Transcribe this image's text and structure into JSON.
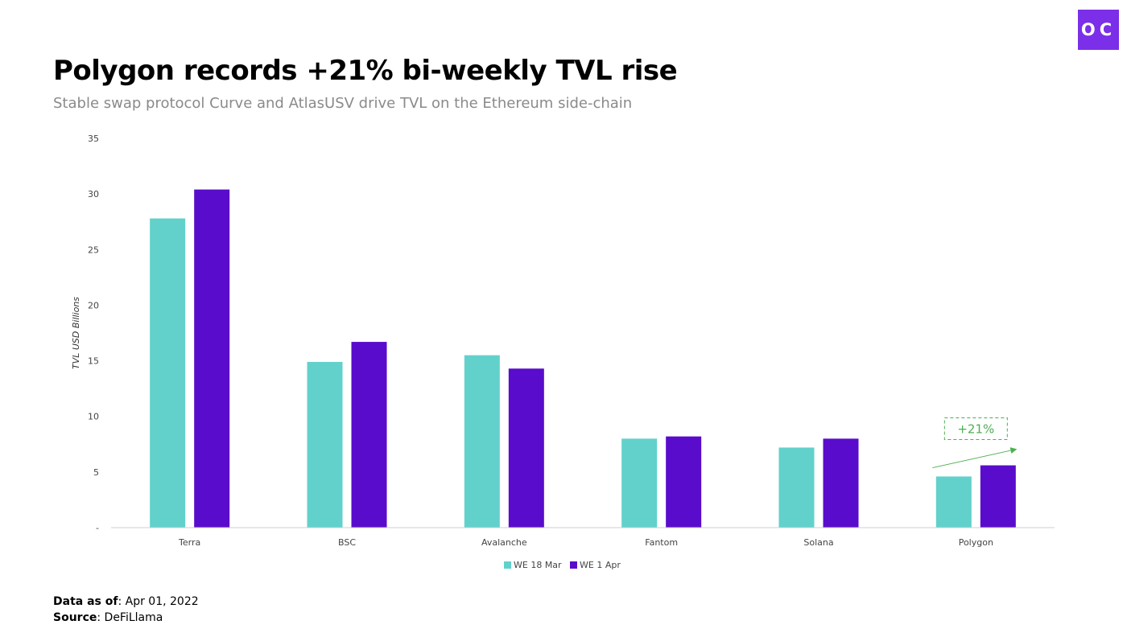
{
  "logo": {
    "text": "OC"
  },
  "header": {
    "title": "Polygon records +21% bi-weekly TVL rise",
    "subtitle": "Stable swap protocol Curve and AtlasUSV drive TVL on the Ethereum side-chain"
  },
  "colors": {
    "series1": "#62d1cb",
    "series2": "#5a0ccc",
    "annotation": "#4caf50",
    "brand": "#7b2fe8"
  },
  "chart_data": {
    "type": "bar",
    "title": "Polygon records +21% bi-weekly TVL rise",
    "xlabel": "",
    "ylabel": "TVL USD Billions",
    "ylim": [
      0,
      35
    ],
    "yticks": [
      {
        "value": 0,
        "label": "-"
      },
      {
        "value": 5,
        "label": "5"
      },
      {
        "value": 10,
        "label": "10"
      },
      {
        "value": 15,
        "label": "15"
      },
      {
        "value": 20,
        "label": "20"
      },
      {
        "value": 25,
        "label": "25"
      },
      {
        "value": 30,
        "label": "30"
      },
      {
        "value": 35,
        "label": "35"
      }
    ],
    "categories": [
      "Terra",
      "BSC",
      "Avalanche",
      "Fantom",
      "Solana",
      "Polygon"
    ],
    "series": [
      {
        "name": "WE 18 Mar",
        "color": "#62d1cb",
        "values": [
          27.8,
          14.9,
          15.5,
          8.0,
          7.2,
          4.6
        ]
      },
      {
        "name": "WE 1 Apr",
        "color": "#5a0ccc",
        "values": [
          30.4,
          16.7,
          14.3,
          8.2,
          8.0,
          5.6
        ]
      }
    ],
    "legend_position": "bottom",
    "grid": false,
    "annotation": {
      "text": "+21%",
      "category": "Polygon"
    }
  },
  "footer": {
    "data_as_of_label": "Data as of",
    "data_as_of_value": ": Apr 01, 2022",
    "source_label": "Source",
    "source_value": ": DeFiLlama"
  }
}
